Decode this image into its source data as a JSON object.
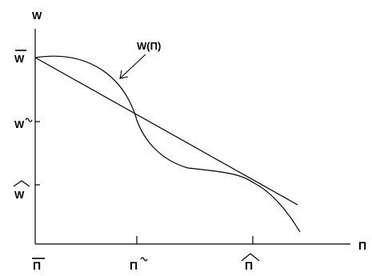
{
  "diagram": {
    "y_axis_label": "W",
    "x_axis_label": "Π",
    "curve_label": "W(Π)",
    "y_ticks": [
      {
        "symbol": "W",
        "accent": "bar"
      },
      {
        "symbol": "W",
        "accent": "tilde"
      },
      {
        "symbol": "W",
        "accent": "hat"
      }
    ],
    "x_ticks": [
      {
        "symbol": "Π",
        "accent": "bar"
      },
      {
        "symbol": "Π",
        "accent": "tilde"
      },
      {
        "symbol": "Π",
        "accent": "hat"
      }
    ],
    "colors": {
      "ink": "#000000",
      "background": "#ffffff"
    }
  }
}
